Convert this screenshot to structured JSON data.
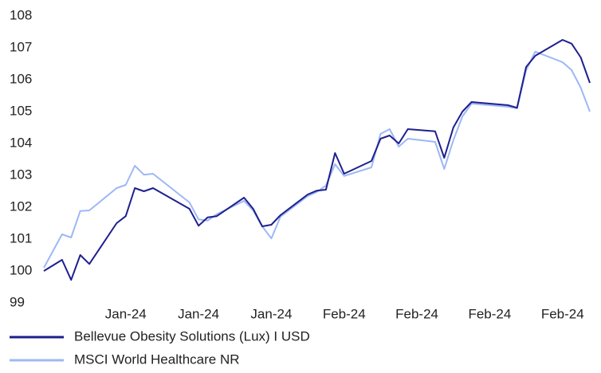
{
  "chart_data": {
    "type": "line",
    "x": [
      0,
      2,
      3,
      4,
      5,
      8,
      9,
      10,
      11,
      12,
      16,
      17,
      18,
      19,
      22,
      23,
      24,
      25,
      26,
      29,
      30,
      31,
      32,
      33,
      36,
      37,
      38,
      39,
      40,
      43,
      44,
      45,
      46,
      47,
      51,
      52,
      53,
      54,
      57,
      58,
      59,
      60
    ],
    "series": [
      {
        "name": "Bellevue Obesity Solutions (Lux) I USD",
        "color": "#1f1f8f",
        "values": [
          100.0,
          100.35,
          99.72,
          100.5,
          100.22,
          101.5,
          101.72,
          102.6,
          102.5,
          102.6,
          101.95,
          101.42,
          101.68,
          101.72,
          102.3,
          101.95,
          101.4,
          101.45,
          101.75,
          102.4,
          102.52,
          102.55,
          103.7,
          103.05,
          103.45,
          104.15,
          104.25,
          104.0,
          104.45,
          104.38,
          103.55,
          104.5,
          105.0,
          105.3,
          105.2,
          105.12,
          106.4,
          106.75,
          107.25,
          107.13,
          106.7,
          105.9
        ]
      },
      {
        "name": "MSCI World Healthcare NR",
        "color": "#9db8f5",
        "values": [
          100.1,
          101.15,
          101.05,
          101.88,
          101.9,
          102.6,
          102.7,
          103.3,
          103.02,
          103.05,
          102.15,
          101.62,
          101.58,
          101.78,
          102.2,
          101.9,
          101.4,
          101.02,
          101.7,
          102.35,
          102.48,
          102.68,
          103.35,
          102.98,
          103.25,
          104.3,
          104.45,
          103.9,
          104.15,
          104.05,
          103.2,
          104.1,
          104.85,
          105.25,
          105.15,
          105.1,
          106.3,
          106.88,
          106.55,
          106.3,
          105.75,
          105.0
        ]
      }
    ],
    "xlim": [
      0,
      60
    ],
    "xticks": [
      {
        "value": 9,
        "label": "Jan-24"
      },
      {
        "value": 17,
        "label": "Jan-24"
      },
      {
        "value": 25,
        "label": "Jan-24"
      },
      {
        "value": 33,
        "label": "Feb-24"
      },
      {
        "value": 41,
        "label": "Feb-24"
      },
      {
        "value": 49,
        "label": "Feb-24"
      },
      {
        "value": 57,
        "label": "Feb-24"
      }
    ],
    "ylim": [
      99,
      108
    ],
    "yticks": [
      99,
      100,
      101,
      102,
      103,
      104,
      105,
      106,
      107,
      108
    ],
    "legend": "bottom"
  }
}
